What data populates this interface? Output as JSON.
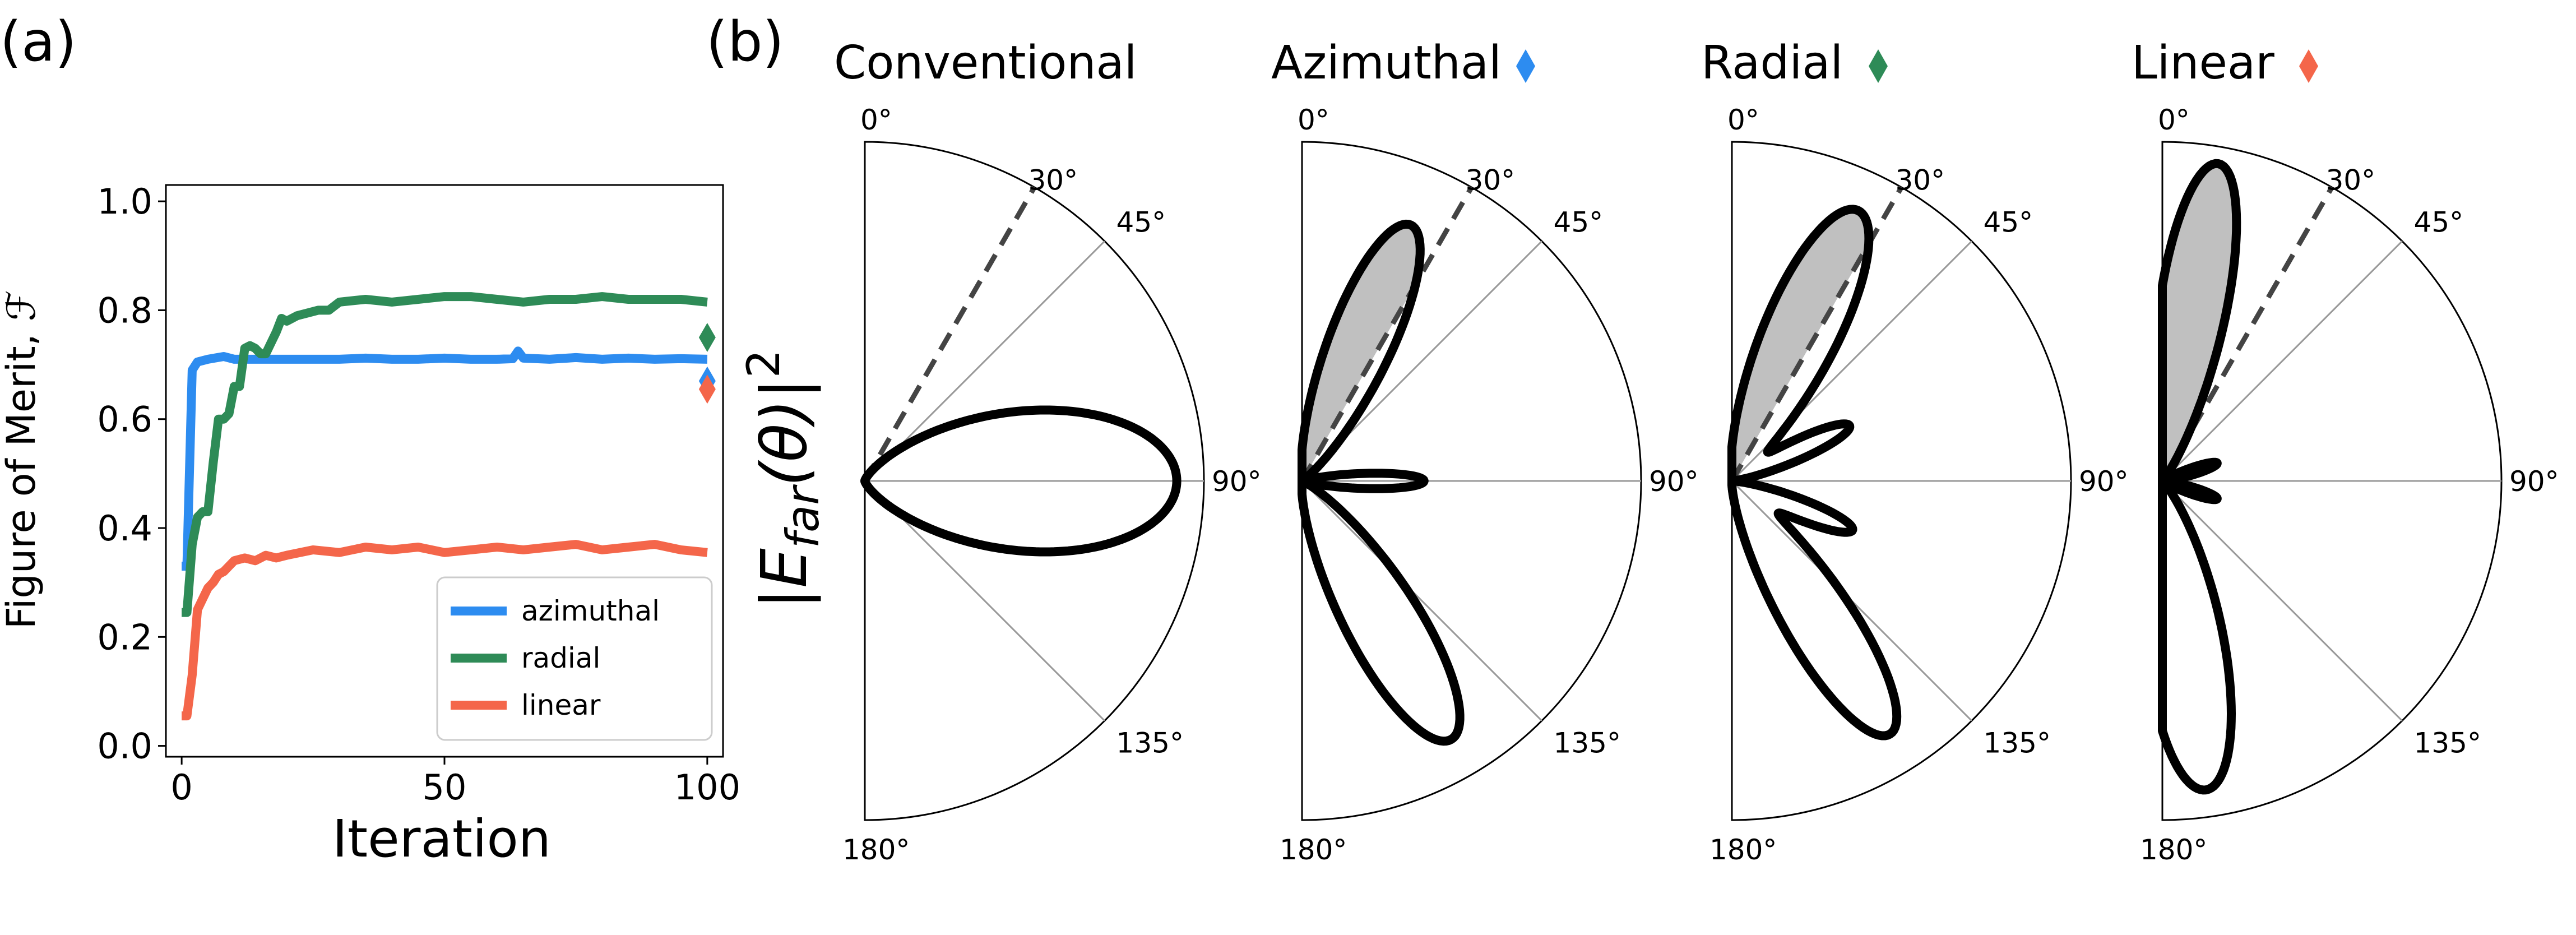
{
  "panels": {
    "a": {
      "letter": "(a)",
      "ylabel": "Figure of Merit, ℱ",
      "xlabel": "Iteration"
    },
    "b": {
      "letter": "(b)",
      "ylabel_main": "|E",
      "ylabel_sub": "far",
      "ylabel_rest": "(θ)|",
      "ylabel_sup": "2"
    }
  },
  "colors": {
    "azimuthal": "#2d8cf0",
    "radial": "#2e8b57",
    "linear": "#f4664a",
    "lobe_fill": "#c0c0c0",
    "dashed": "#444444"
  },
  "chart_data": [
    {
      "type": "line",
      "xlabel": "Iteration",
      "ylabel": "Figure of Merit, ℱ",
      "xlim": [
        0,
        100
      ],
      "ylim": [
        0,
        1.0
      ],
      "xticks": [
        "0",
        "50",
        "100"
      ],
      "yticks": [
        "0.0",
        "0.2",
        "0.4",
        "0.6",
        "0.8",
        "1.0"
      ],
      "legend": "lower-right",
      "series": [
        {
          "name": "azimuthal",
          "color": "#2d8cf0",
          "x": [
            0,
            1,
            2,
            3,
            5,
            8,
            10,
            15,
            20,
            25,
            30,
            35,
            40,
            45,
            50,
            55,
            60,
            63,
            64,
            65,
            70,
            75,
            80,
            85,
            90,
            95,
            100
          ],
          "y": [
            0.33,
            0.33,
            0.69,
            0.705,
            0.71,
            0.715,
            0.71,
            0.71,
            0.71,
            0.71,
            0.71,
            0.712,
            0.71,
            0.71,
            0.712,
            0.71,
            0.71,
            0.711,
            0.725,
            0.712,
            0.71,
            0.713,
            0.71,
            0.712,
            0.71,
            0.711,
            0.71
          ]
        },
        {
          "name": "radial",
          "color": "#2e8b57",
          "x": [
            0,
            1,
            2,
            3,
            4,
            5,
            6,
            7,
            8,
            9,
            10,
            11,
            12,
            13,
            14,
            15,
            16,
            17,
            18,
            19,
            20,
            22,
            24,
            26,
            28,
            30,
            35,
            40,
            45,
            50,
            55,
            60,
            65,
            70,
            75,
            80,
            85,
            90,
            95,
            100
          ],
          "y": [
            0.245,
            0.245,
            0.37,
            0.42,
            0.43,
            0.43,
            0.52,
            0.6,
            0.6,
            0.61,
            0.66,
            0.66,
            0.73,
            0.735,
            0.73,
            0.72,
            0.72,
            0.74,
            0.76,
            0.785,
            0.78,
            0.79,
            0.795,
            0.8,
            0.8,
            0.815,
            0.82,
            0.815,
            0.82,
            0.825,
            0.825,
            0.82,
            0.815,
            0.82,
            0.82,
            0.825,
            0.82,
            0.82,
            0.82,
            0.815
          ]
        },
        {
          "name": "linear",
          "color": "#f4664a",
          "x": [
            0,
            1,
            2,
            3,
            4,
            5,
            6,
            7,
            8,
            9,
            10,
            12,
            14,
            16,
            18,
            20,
            25,
            30,
            35,
            40,
            45,
            50,
            55,
            60,
            65,
            70,
            75,
            80,
            85,
            90,
            95,
            100
          ],
          "y": [
            0.055,
            0.055,
            0.13,
            0.25,
            0.27,
            0.29,
            0.3,
            0.315,
            0.32,
            0.33,
            0.34,
            0.345,
            0.34,
            0.35,
            0.345,
            0.35,
            0.36,
            0.355,
            0.365,
            0.36,
            0.365,
            0.355,
            0.36,
            0.365,
            0.36,
            0.365,
            0.37,
            0.36,
            0.365,
            0.37,
            0.36,
            0.355
          ]
        }
      ],
      "markers": [
        {
          "name": "radial",
          "x": 100,
          "y": 0.75,
          "color": "#2e8b57"
        },
        {
          "name": "azimuthal",
          "x": 100,
          "y": 0.67,
          "color": "#2d8cf0"
        },
        {
          "name": "linear",
          "x": 100,
          "y": 0.655,
          "color": "#f4664a"
        }
      ]
    },
    {
      "type": "polar",
      "angle_labels": [
        "0°",
        "30°",
        "45°",
        "90°",
        "135°",
        "180°"
      ],
      "dashed_angle_deg": 30,
      "plots": [
        {
          "title": "Conventional",
          "marker_color": "",
          "lobes": [
            {
              "center_deg": 90,
              "width_deg": 22,
              "amp": 0.92
            }
          ],
          "base": 0.0,
          "shaded_below_deg": 0
        },
        {
          "title": "Azimuthal",
          "marker_color": "#2d8cf0",
          "lobes": [
            {
              "center_deg": 23,
              "width_deg": 11,
              "amp": 0.82
            },
            {
              "center_deg": 90,
              "width_deg": 6,
              "amp": 0.36
            },
            {
              "center_deg": 150,
              "width_deg": 12,
              "amp": 0.88
            }
          ],
          "base": 0.0,
          "shaded_below_deg": 30
        },
        {
          "title": "Radial",
          "marker_color": "#2e8b57",
          "lobes": [
            {
              "center_deg": 25,
              "width_deg": 12,
              "amp": 0.88
            },
            {
              "center_deg": 65,
              "width_deg": 7,
              "amp": 0.38
            },
            {
              "center_deg": 112,
              "width_deg": 7,
              "amp": 0.38
            },
            {
              "center_deg": 148,
              "width_deg": 11,
              "amp": 0.88
            }
          ],
          "base": 0.0,
          "shaded_below_deg": 30
        },
        {
          "title": "Linear",
          "marker_color": "#f4664a",
          "lobes": [
            {
              "center_deg": 10,
              "width_deg": 10,
              "amp": 0.95
            },
            {
              "center_deg": 72,
              "width_deg": 6,
              "amp": 0.17
            },
            {
              "center_deg": 108,
              "width_deg": 6,
              "amp": 0.17
            },
            {
              "center_deg": 172,
              "width_deg": 12,
              "amp": 0.92
            }
          ],
          "base": 0.0,
          "shaded_below_deg": 30
        }
      ]
    }
  ]
}
